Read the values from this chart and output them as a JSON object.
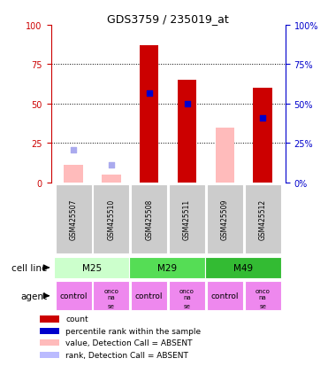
{
  "title": "GDS3759 / 235019_at",
  "samples": [
    "GSM425507",
    "GSM425510",
    "GSM425508",
    "GSM425511",
    "GSM425509",
    "GSM425512"
  ],
  "agents": [
    "control",
    "onconase",
    "control",
    "onconase",
    "control",
    "onconase"
  ],
  "cell_line_groups": [
    {
      "label": "M25",
      "start": 0,
      "end": 2,
      "color": "#ccffcc"
    },
    {
      "label": "M29",
      "start": 2,
      "end": 4,
      "color": "#55dd55"
    },
    {
      "label": "M49",
      "start": 4,
      "end": 6,
      "color": "#33bb33"
    }
  ],
  "red_bars": [
    null,
    null,
    87,
    65,
    null,
    60
  ],
  "pink_bars": [
    11,
    5,
    null,
    null,
    35,
    null
  ],
  "blue_squares": [
    null,
    null,
    57,
    50,
    null,
    41
  ],
  "blue_light_squares": [
    21,
    11,
    null,
    null,
    null,
    null
  ],
  "ylim": [
    0,
    100
  ],
  "yticks": [
    0,
    25,
    50,
    75,
    100
  ],
  "grid_lines": [
    25,
    50,
    75
  ],
  "left_axis_color": "#cc0000",
  "right_axis_color": "#0000cc",
  "bar_width": 0.5,
  "legend_items": [
    {
      "color": "#cc0000",
      "label": "count"
    },
    {
      "color": "#0000cc",
      "label": "percentile rank within the sample"
    },
    {
      "color": "#ffbbbb",
      "label": "value, Detection Call = ABSENT"
    },
    {
      "color": "#bbbbff",
      "label": "rank, Detection Call = ABSENT"
    }
  ]
}
